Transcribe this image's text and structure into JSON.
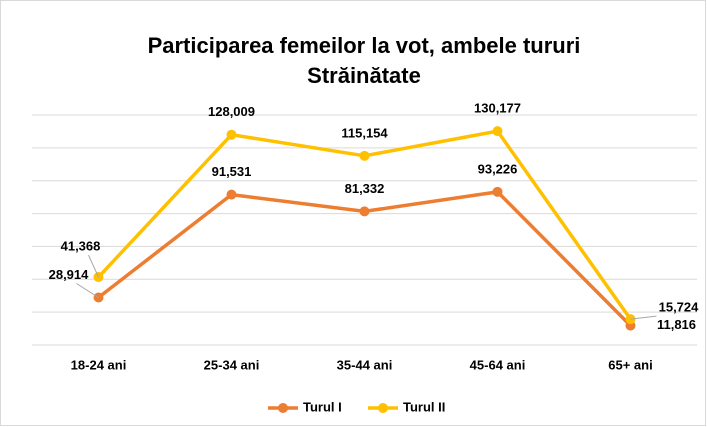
{
  "chart_data": {
    "type": "line",
    "title": "Participarea femeilor la vot, ambele tururi",
    "subtitle": "Străinătate",
    "categories": [
      "18-24 ani",
      "25-34 ani",
      "35-44 ani",
      "45-64 ani",
      "65+ ani"
    ],
    "series": [
      {
        "name": "Turul I",
        "color": "#ed7d31",
        "values": [
          28914,
          91531,
          81332,
          93226,
          11816
        ],
        "value_labels": [
          "28,914",
          "91,531",
          "81,332",
          "93,226",
          "11,816"
        ]
      },
      {
        "name": "Turul II",
        "color": "#ffc000",
        "values": [
          41368,
          128009,
          115154,
          130177,
          15724
        ],
        "value_labels": [
          "41,368",
          "128,009",
          "115,154",
          "130,177",
          "15,724"
        ]
      }
    ],
    "ylim": [
      0,
      140000
    ],
    "yticks": [
      0,
      20000,
      40000,
      60000,
      80000,
      100000,
      120000,
      140000
    ],
    "grid": true,
    "legend": "bottom"
  }
}
